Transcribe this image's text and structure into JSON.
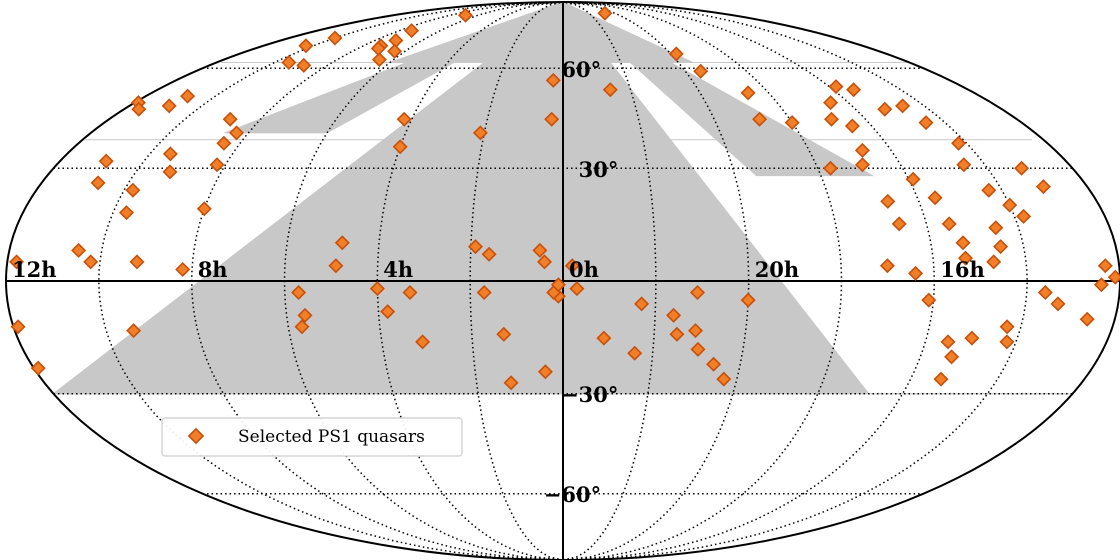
{
  "chart_data": {
    "type": "scatter",
    "projection": "mollweide",
    "x_units": "right ascension (hours)",
    "y_units": "declination (degrees)",
    "ra_tick_labels": [
      "12h",
      "8h",
      "4h",
      "0h",
      "20h",
      "16h"
    ],
    "dec_tick_labels": [
      "60°",
      "30°",
      "−30°",
      "−60°"
    ],
    "gridlines": true,
    "footprint_color": "#c8c8c8",
    "marker_fill": "#f07f28",
    "marker_edge": "#c8500a",
    "legend": {
      "label": "Selected PS1 quasars",
      "placement": "lower-left"
    },
    "series": [
      {
        "name": "Selected PS1 quasars",
        "points": [
          [
            20.8,
            82
          ],
          [
            6.9,
            81
          ],
          [
            6.5,
            63
          ],
          [
            4.2,
            44
          ],
          [
            4.0,
            36
          ],
          [
            2.1,
            40
          ],
          [
            0.3,
            56
          ],
          [
            0.3,
            44
          ],
          [
            22.6,
            53
          ],
          [
            4.8,
            10
          ],
          [
            4.9,
            4
          ],
          [
            1.9,
            9
          ],
          [
            1.6,
            7
          ],
          [
            0.5,
            8
          ],
          [
            0.4,
            5
          ],
          [
            0.1,
            -4
          ],
          [
            0.2,
            -3
          ],
          [
            23.8,
            4
          ],
          [
            5.7,
            -3
          ],
          [
            5.6,
            -9
          ],
          [
            5.7,
            -12
          ],
          [
            4.0,
            -2
          ],
          [
            3.8,
            -8
          ],
          [
            3.3,
            -3
          ],
          [
            3.1,
            -16
          ],
          [
            1.7,
            -3
          ],
          [
            1.3,
            -14
          ],
          [
            1.2,
            -27
          ],
          [
            0.4,
            -24
          ],
          [
            0.1,
            -1
          ],
          [
            23.7,
            -2
          ],
          [
            23.1,
            -15
          ],
          [
            22.4,
            -19
          ],
          [
            22.3,
            -6
          ],
          [
            21.6,
            -9
          ],
          [
            21.5,
            -14
          ],
          [
            21.0,
            -18
          ],
          [
            20.6,
            -22
          ],
          [
            20.3,
            -26
          ],
          [
            21.1,
            -3
          ],
          [
            20.0,
            -5
          ],
          [
            21.1,
            -13
          ],
          [
            7.3,
            68
          ],
          [
            7.2,
            67
          ],
          [
            7.1,
            70
          ],
          [
            6.4,
            66
          ],
          [
            7.4,
            74
          ],
          [
            8.8,
            61
          ],
          [
            9.5,
            62
          ],
          [
            10.0,
            71
          ],
          [
            10.3,
            68
          ],
          [
            10.8,
            51
          ],
          [
            10.9,
            48
          ],
          [
            11.9,
            49
          ],
          [
            11.6,
            47
          ],
          [
            8.8,
            44
          ],
          [
            8.3,
            40
          ],
          [
            8.4,
            37
          ],
          [
            9.5,
            34
          ],
          [
            8.0,
            19
          ],
          [
            9.8,
            24
          ],
          [
            9.7,
            18
          ],
          [
            9.2,
            29
          ],
          [
            8.2,
            31
          ],
          [
            10.9,
            32
          ],
          [
            10.7,
            26
          ],
          [
            10.5,
            8
          ],
          [
            10.2,
            5
          ],
          [
            11.8,
            5
          ],
          [
            9.2,
            5
          ],
          [
            8.2,
            3
          ],
          [
            11.9,
            -12
          ],
          [
            9.4,
            -13
          ],
          [
            11.9,
            -23
          ],
          [
            19.8,
            65
          ],
          [
            19.5,
            59
          ],
          [
            18.6,
            52
          ],
          [
            18.0,
            43
          ],
          [
            18.8,
            44
          ],
          [
            16.5,
            49
          ],
          [
            15.8,
            54
          ],
          [
            15.4,
            53
          ],
          [
            15.2,
            47
          ],
          [
            16.9,
            44
          ],
          [
            16.5,
            42
          ],
          [
            14.5,
            43
          ],
          [
            14.6,
            48
          ],
          [
            14.2,
            37
          ],
          [
            14.5,
            31
          ],
          [
            14.3,
            24
          ],
          [
            13.2,
            30
          ],
          [
            13.0,
            25
          ],
          [
            14.5,
            14
          ],
          [
            15.5,
            15
          ],
          [
            16.6,
            15
          ],
          [
            17.7,
            30
          ],
          [
            16.7,
            35
          ],
          [
            16.9,
            31
          ],
          [
            15.9,
            27
          ],
          [
            16.7,
            21
          ],
          [
            15.6,
            22
          ],
          [
            14.0,
            20
          ],
          [
            13.8,
            17
          ],
          [
            15.3,
            10
          ],
          [
            17.0,
            4
          ],
          [
            15.3,
            6
          ],
          [
            14.7,
            5
          ],
          [
            14.5,
            9
          ],
          [
            16.4,
            2
          ],
          [
            16.1,
            -5
          ],
          [
            12.3,
            4
          ],
          [
            12.4,
            -1
          ],
          [
            13.3,
            -6
          ],
          [
            14.3,
            -12
          ],
          [
            14.2,
            -16
          ],
          [
            15.3,
            -20
          ],
          [
            15.5,
            -16
          ],
          [
            15.0,
            -15
          ],
          [
            15.3,
            -26
          ],
          [
            12.6,
            -10
          ],
          [
            13.6,
            -3
          ],
          [
            12.1,
            1
          ]
        ]
      }
    ]
  }
}
